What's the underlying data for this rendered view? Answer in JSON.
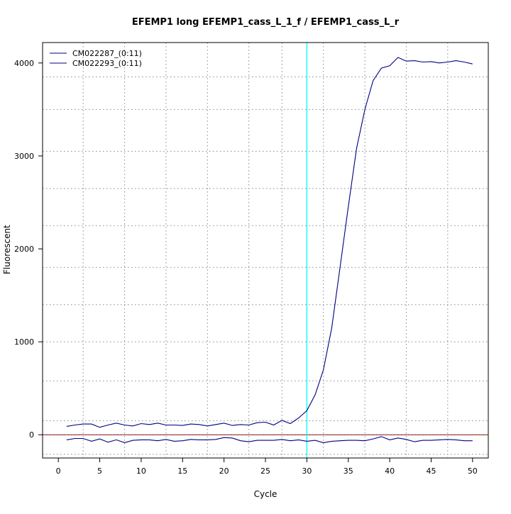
{
  "chart_data": {
    "type": "line",
    "title": "EFEMP1 long EFEMP1_cass_L_1_f / EFEMP1_cass_L_r",
    "xlabel": "Cycle",
    "ylabel": "Fluorescent",
    "xlim": [
      -1.9,
      51.9
    ],
    "ylim": [
      -250,
      4220
    ],
    "x_ticks": [
      0,
      5,
      10,
      15,
      20,
      25,
      30,
      35,
      40,
      45,
      50
    ],
    "y_ticks": [
      0,
      1000,
      2000,
      3000,
      4000
    ],
    "x_grid": [
      3,
      8,
      13,
      18,
      23,
      27,
      30,
      32,
      37,
      42,
      47
    ],
    "y_grid": [
      -210,
      0,
      150,
      580,
      1000,
      1400,
      1800,
      2250,
      2650,
      3050,
      3500,
      3850
    ],
    "grid": true,
    "legend_position": "top-left",
    "threshold_line": {
      "x": 30,
      "color": "#00ffff"
    },
    "baseline": {
      "y": 0,
      "color": "#8b1a1a"
    },
    "series": [
      {
        "name": "CM022287_(0:11)",
        "color": "#000080",
        "x": [
          1,
          2,
          3,
          4,
          5,
          6,
          7,
          8,
          9,
          10,
          11,
          12,
          13,
          14,
          15,
          16,
          17,
          18,
          19,
          20,
          21,
          22,
          23,
          24,
          25,
          26,
          27,
          28,
          29,
          30,
          31,
          32,
          33,
          34,
          35,
          36,
          37,
          38,
          39,
          40,
          41,
          42,
          43,
          44,
          45,
          46,
          47,
          48,
          49,
          50
        ],
        "values": [
          90,
          105,
          115,
          115,
          80,
          105,
          125,
          105,
          95,
          120,
          110,
          125,
          105,
          105,
          100,
          115,
          110,
          95,
          110,
          125,
          100,
          110,
          105,
          130,
          135,
          105,
          155,
          120,
          180,
          260,
          430,
          700,
          1150,
          1800,
          2450,
          3080,
          3500,
          3810,
          3945,
          3970,
          4060,
          4020,
          4025,
          4010,
          4015,
          4000,
          4010,
          4025,
          4010,
          3990
        ]
      },
      {
        "name": "CM022293_(0:11)",
        "color": "#000080",
        "x": [
          1,
          2,
          3,
          4,
          5,
          6,
          7,
          8,
          9,
          10,
          11,
          12,
          13,
          14,
          15,
          16,
          17,
          18,
          19,
          20,
          21,
          22,
          23,
          24,
          25,
          26,
          27,
          28,
          29,
          30,
          31,
          32,
          33,
          34,
          35,
          36,
          37,
          38,
          39,
          40,
          41,
          42,
          43,
          44,
          45,
          46,
          47,
          48,
          49,
          50
        ],
        "values": [
          -55,
          -40,
          -40,
          -70,
          -45,
          -80,
          -55,
          -85,
          -60,
          -55,
          -55,
          -65,
          -50,
          -70,
          -65,
          -50,
          -55,
          -55,
          -50,
          -30,
          -35,
          -65,
          -75,
          -60,
          -60,
          -60,
          -50,
          -65,
          -55,
          -70,
          -60,
          -85,
          -70,
          -65,
          -60,
          -60,
          -65,
          -45,
          -20,
          -55,
          -35,
          -50,
          -75,
          -60,
          -60,
          -55,
          -50,
          -55,
          -65,
          -65
        ]
      }
    ]
  }
}
